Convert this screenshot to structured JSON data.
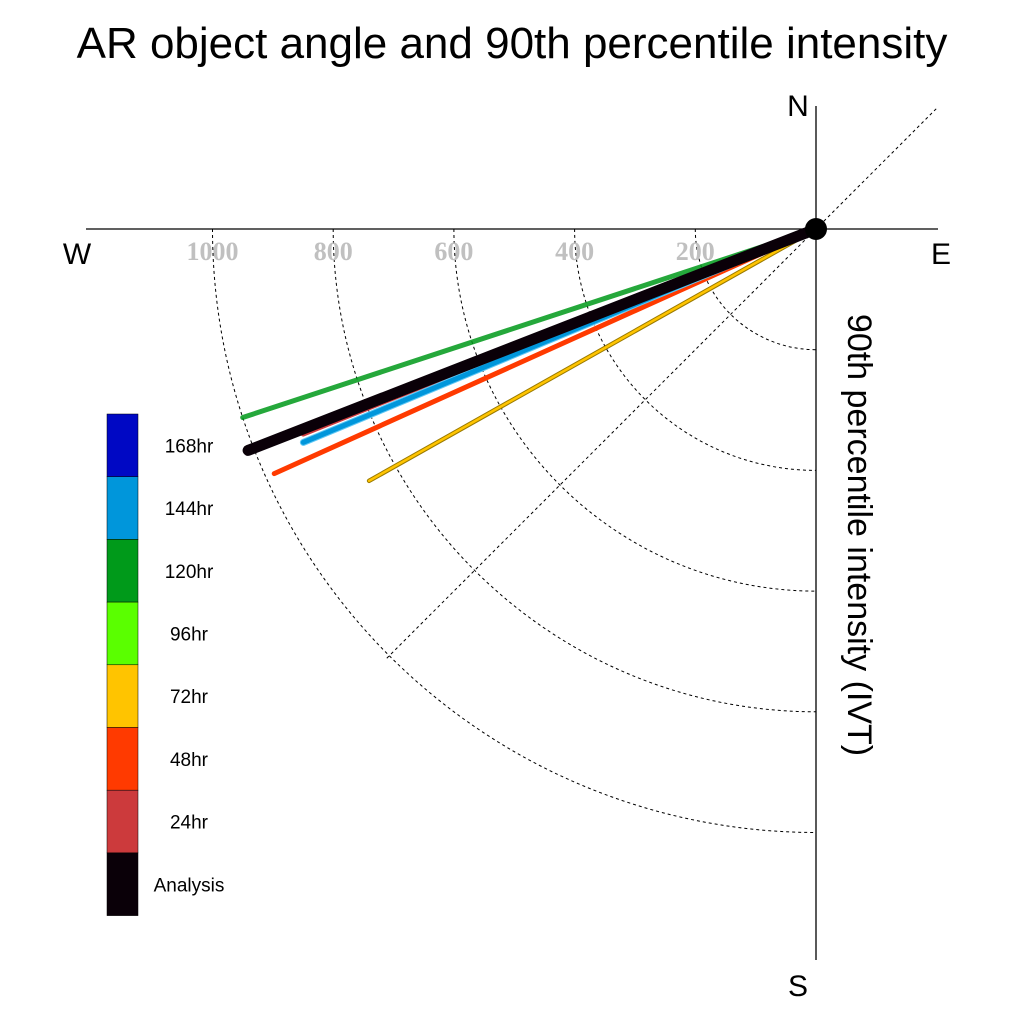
{
  "chart_data": {
    "type": "polar-line",
    "title": "AR object angle and 90th percentile intensity",
    "radial_label": "90th percentile intensity (IVT)",
    "directions": {
      "north": "N",
      "south": "S",
      "east": "E",
      "west": "W"
    },
    "radial_ticks": [
      {
        "value": 200,
        "label": "200"
      },
      {
        "value": 400,
        "label": "400"
      },
      {
        "value": 600,
        "label": "600"
      },
      {
        "value": 800,
        "label": "800"
      },
      {
        "value": 1000,
        "label": "1000"
      }
    ],
    "radial_range": [
      0,
      1000
    ],
    "guide_angle_deg": 45,
    "series": [
      {
        "name": "120hr",
        "angle_deg": 18.2,
        "value": 1000,
        "color": "#009a1a"
      },
      {
        "name": "72hr",
        "angle_deg": 29.4,
        "value": 850,
        "color": "#ffc400"
      },
      {
        "name": "48hr",
        "angle_deg": 24.3,
        "value": 985,
        "color": "#ff3a00"
      },
      {
        "name": "24hr",
        "angle_deg": 21.8,
        "value": 915,
        "color": "#cc3a3c"
      },
      {
        "name": "144hr",
        "angle_deg": 22.6,
        "value": 920,
        "color": "#0096db"
      },
      {
        "name": "Analysis",
        "angle_deg": 21.3,
        "value": 1010,
        "color": "#0a0008"
      }
    ],
    "legend": {
      "placement": "left",
      "entries": [
        {
          "label": "168hr",
          "color": "#0008c4"
        },
        {
          "label": "144hr",
          "color": "#0096db"
        },
        {
          "label": "120hr",
          "color": "#009a1a"
        },
        {
          "label": "96hr",
          "color": "#5aff00"
        },
        {
          "label": "72hr",
          "color": "#ffc400"
        },
        {
          "label": "48hr",
          "color": "#ff3a00"
        },
        {
          "label": "24hr",
          "color": "#cc3a3c"
        },
        {
          "label": "Analysis",
          "color": "#0a0008"
        }
      ]
    }
  }
}
